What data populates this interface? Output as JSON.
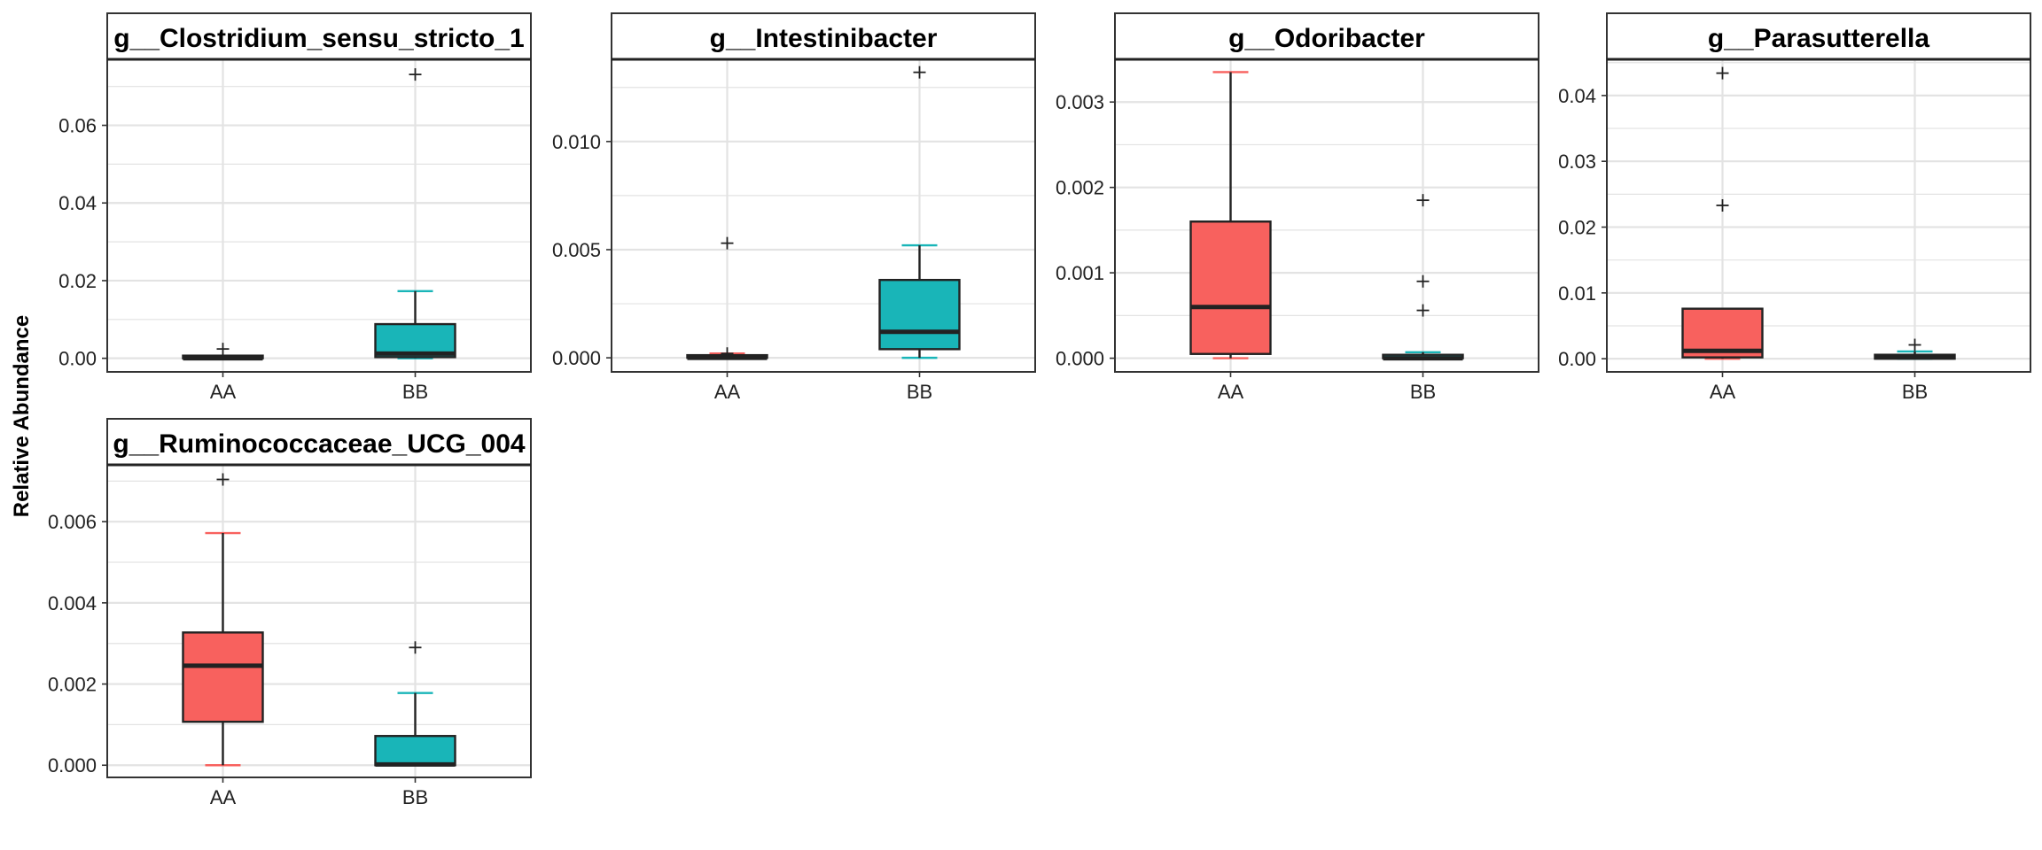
{
  "chart_data": {
    "type": "box",
    "ylabel": "Relative Abundance",
    "groups": [
      "AA",
      "BB"
    ],
    "colors": {
      "AA": "#F8615E",
      "BB": "#19B5B8",
      "outline": "#222222",
      "grid": "#E3E3E3"
    },
    "grid": true,
    "panels": [
      {
        "title": "g__Clostridium_sensu_stricto_1",
        "ylim": [
          -0.0035,
          0.077
        ],
        "yticks": [
          "0.00",
          "0.02",
          "0.04",
          "0.06"
        ],
        "boxes": [
          {
            "group": "AA",
            "min": 0.0,
            "q1": 0.0,
            "median": 0.0,
            "q3": 0.0004,
            "max": 0.0006,
            "outliers": [
              0.0024
            ]
          },
          {
            "group": "BB",
            "min": 0.0,
            "q1": 0.0003,
            "median": 0.0012,
            "q3": 0.0088,
            "max": 0.0173,
            "outliers": [
              0.0731
            ]
          }
        ]
      },
      {
        "title": "g__Intestinibacter",
        "ylim": [
          -0.00065,
          0.0138
        ],
        "yticks": [
          "0.000",
          "0.005",
          "0.010"
        ],
        "boxes": [
          {
            "group": "AA",
            "min": 0.0,
            "q1": 0.0,
            "median": 0.0,
            "q3": 0.0001,
            "max": 0.0002,
            "outliers": [
              0.0053,
              0.0002
            ]
          },
          {
            "group": "BB",
            "min": 0.0,
            "q1": 0.0004,
            "median": 0.0012,
            "q3": 0.0036,
            "max": 0.0052,
            "outliers": [
              0.0132
            ]
          }
        ]
      },
      {
        "title": "g__Odoribacter",
        "ylim": [
          -0.00016,
          0.0035
        ],
        "yticks": [
          "0.000",
          "0.001",
          "0.002",
          "0.003"
        ],
        "boxes": [
          {
            "group": "AA",
            "min": 0.0,
            "q1": 5e-05,
            "median": 0.0006,
            "q3": 0.0016,
            "max": 0.00335,
            "outliers": []
          },
          {
            "group": "BB",
            "min": 0.0,
            "q1": 0.0,
            "median": 0.0,
            "q3": 4e-05,
            "max": 7e-05,
            "outliers": [
              0.00185,
              0.0009,
              0.00056
            ]
          }
        ]
      },
      {
        "title": "g__Parasutterella",
        "ylim": [
          -0.002,
          0.0455
        ],
        "yticks": [
          "0.00",
          "0.01",
          "0.02",
          "0.03",
          "0.04"
        ],
        "boxes": [
          {
            "group": "AA",
            "min": 0.0,
            "q1": 0.0002,
            "median": 0.0012,
            "q3": 0.0076,
            "max": 0.0076,
            "outliers": [
              0.0434,
              0.0233
            ]
          },
          {
            "group": "BB",
            "min": 0.0,
            "q1": 0.0,
            "median": 0.0002,
            "q3": 0.0006,
            "max": 0.0011,
            "outliers": [
              0.0021
            ]
          }
        ]
      },
      {
        "title": "g__Ruminococcaceae_UCG_004",
        "ylim": [
          -0.0003,
          0.0074
        ],
        "yticks": [
          "0.000",
          "0.002",
          "0.004",
          "0.006"
        ],
        "boxes": [
          {
            "group": "AA",
            "min": 0.0,
            "q1": 0.00107,
            "median": 0.00245,
            "q3": 0.00327,
            "max": 0.00572,
            "outliers": [
              0.00704
            ]
          },
          {
            "group": "BB",
            "min": 0.0,
            "q1": 0.0,
            "median": 2e-05,
            "q3": 0.00072,
            "max": 0.00178,
            "outliers": [
              0.0029
            ]
          }
        ]
      }
    ]
  }
}
